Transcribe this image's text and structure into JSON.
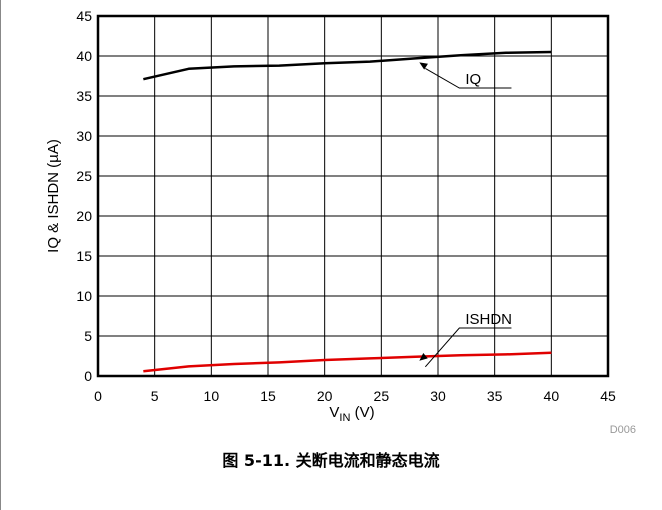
{
  "chart_data": {
    "type": "line",
    "xlabel_main": "V",
    "xlabel_sub": "IN",
    "xlabel_unit": " (V)",
    "ylabel": "IQ & ISHDN (µA)",
    "xlim": [
      0,
      45
    ],
    "ylim": [
      0,
      45
    ],
    "xticks": [
      "0",
      "5",
      "10",
      "15",
      "20",
      "25",
      "30",
      "35",
      "40",
      "45"
    ],
    "yticks": [
      "0",
      "5",
      "10",
      "15",
      "20",
      "25",
      "30",
      "35",
      "40",
      "45"
    ],
    "grid": true,
    "series": [
      {
        "name": "IQ",
        "color": "#000000",
        "x": [
          4,
          8,
          12,
          16,
          20,
          24,
          28,
          32,
          36,
          40
        ],
        "y": [
          37.1,
          38.4,
          38.7,
          38.8,
          39.1,
          39.3,
          39.7,
          40.1,
          40.4,
          40.5
        ]
      },
      {
        "name": "ISHDN",
        "color": "#e00000",
        "x": [
          4,
          8,
          12,
          16,
          20,
          24,
          28,
          32,
          36,
          40
        ],
        "y": [
          0.6,
          1.2,
          1.5,
          1.7,
          2.0,
          2.2,
          2.4,
          2.6,
          2.7,
          2.9
        ]
      }
    ],
    "annotations": [
      {
        "text": "IQ",
        "point": [
          28,
          39.7
        ],
        "label_at": [
          31,
          36
        ]
      },
      {
        "text": "ISHDN",
        "point": [
          28,
          2.4
        ],
        "label_at": [
          31,
          6
        ]
      }
    ]
  },
  "figure_id": "D006",
  "caption": "图 5-11. 关断电流和静态电流"
}
